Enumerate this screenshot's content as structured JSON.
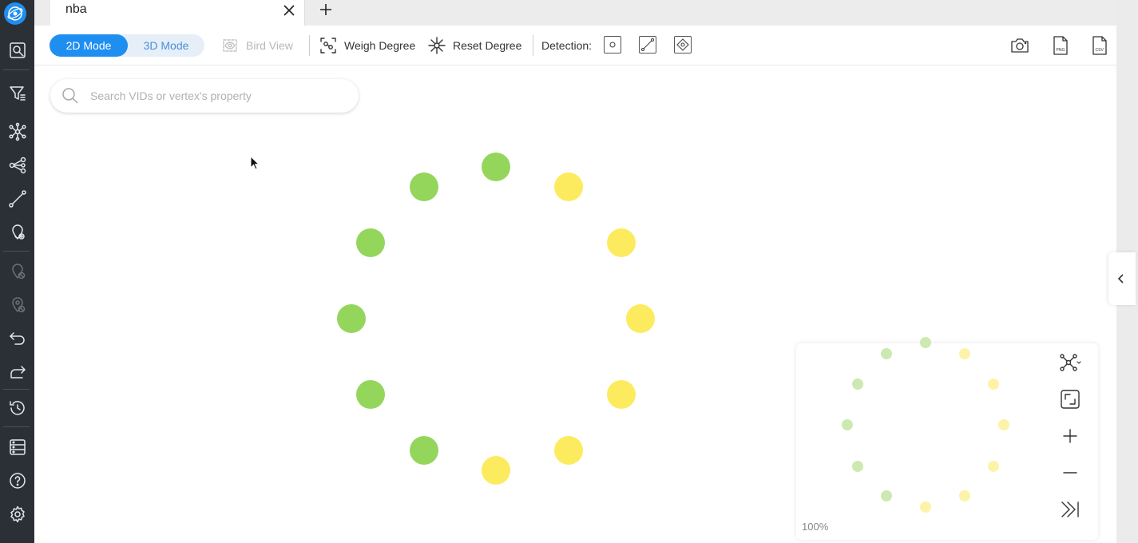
{
  "tab": {
    "title": "nba"
  },
  "toolbar": {
    "mode_2d": "2D Mode",
    "mode_3d": "3D Mode",
    "bird_view": "Bird View",
    "weigh_degree": "Weigh Degree",
    "reset_degree": "Reset Degree",
    "detection_label": "Detection:"
  },
  "search": {
    "placeholder": "Search VIDs or vertex's property"
  },
  "minimap": {
    "zoom": "100%"
  },
  "colors": {
    "accent": "#1f8ef1",
    "node_green": "#94d65c",
    "node_yellow": "#fdeb5f"
  },
  "graph": {
    "vertex_count": 12,
    "vertices": [
      {
        "color": "green"
      },
      {
        "color": "green"
      },
      {
        "color": "green"
      },
      {
        "color": "green"
      },
      {
        "color": "green"
      },
      {
        "color": "green"
      },
      {
        "color": "yellow"
      },
      {
        "color": "yellow"
      },
      {
        "color": "yellow"
      },
      {
        "color": "yellow"
      },
      {
        "color": "yellow"
      },
      {
        "color": "yellow"
      }
    ]
  },
  "icons": {
    "sidebar": [
      "logo-icon",
      "explore-icon",
      "filter-icon",
      "expand-icon",
      "share-icon",
      "path-icon",
      "show-icon",
      "hide-icon",
      "hide-all-icon",
      "undo-icon",
      "redo-icon",
      "history-icon",
      "schema-icon",
      "help-icon",
      "settings-icon"
    ],
    "export": [
      "camera-icon",
      "png-icon",
      "csv-icon"
    ]
  }
}
